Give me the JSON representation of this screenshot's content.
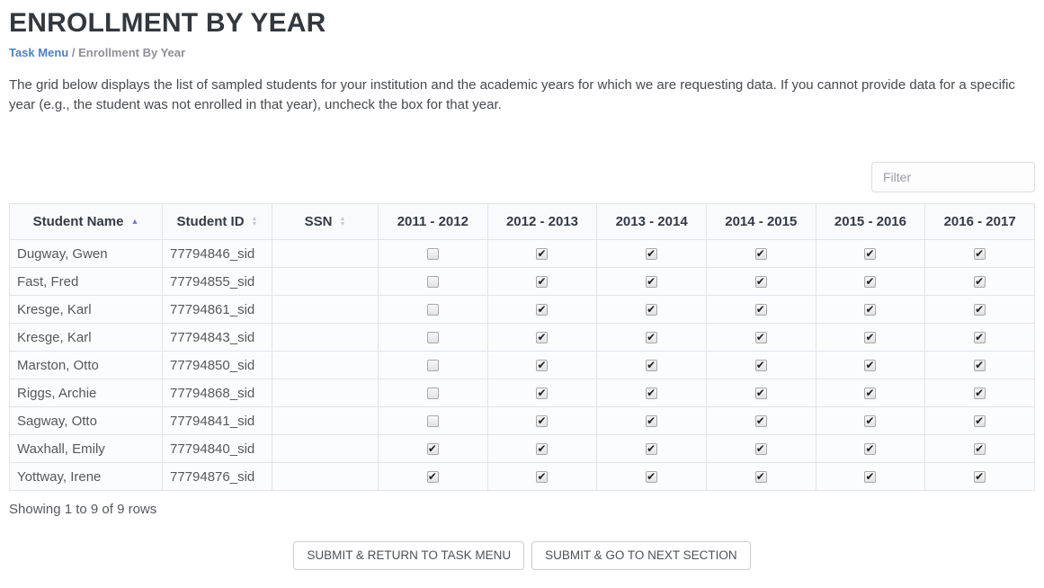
{
  "header": {
    "title": "ENROLLMENT BY YEAR",
    "breadcrumb": {
      "link": "Task Menu",
      "separator": "/",
      "current": "Enrollment By Year"
    },
    "description": "The grid below displays the list of sampled students for your institution and the academic years for which we are requesting data. If you cannot provide data for a specific year (e.g., the student was not enrolled in that year), uncheck the box for that year."
  },
  "filter": {
    "placeholder": "Filter",
    "value": ""
  },
  "table": {
    "columns": [
      {
        "label": "Student Name",
        "sortable": true,
        "sorted": "asc"
      },
      {
        "label": "Student ID",
        "sortable": true,
        "sorted": null
      },
      {
        "label": "SSN",
        "sortable": true,
        "sorted": null
      },
      {
        "label": "2011 - 2012",
        "sortable": false,
        "sorted": null
      },
      {
        "label": "2012 - 2013",
        "sortable": false,
        "sorted": null
      },
      {
        "label": "2013 - 2014",
        "sortable": false,
        "sorted": null
      },
      {
        "label": "2014 - 2015",
        "sortable": false,
        "sorted": null
      },
      {
        "label": "2015 - 2016",
        "sortable": false,
        "sorted": null
      },
      {
        "label": "2016 - 2017",
        "sortable": false,
        "sorted": null
      }
    ],
    "rows": [
      {
        "name": "Dugway, Gwen",
        "id": "77794846_sid",
        "ssn": "",
        "years": [
          false,
          true,
          true,
          true,
          true,
          true
        ]
      },
      {
        "name": "Fast, Fred",
        "id": "77794855_sid",
        "ssn": "",
        "years": [
          false,
          true,
          true,
          true,
          true,
          true
        ]
      },
      {
        "name": "Kresge, Karl",
        "id": "77794861_sid",
        "ssn": "",
        "years": [
          false,
          true,
          true,
          true,
          true,
          true
        ]
      },
      {
        "name": "Kresge, Karl",
        "id": "77794843_sid",
        "ssn": "",
        "years": [
          false,
          true,
          true,
          true,
          true,
          true
        ]
      },
      {
        "name": "Marston, Otto",
        "id": "77794850_sid",
        "ssn": "",
        "years": [
          false,
          true,
          true,
          true,
          true,
          true
        ]
      },
      {
        "name": "Riggs, Archie",
        "id": "77794868_sid",
        "ssn": "",
        "years": [
          false,
          true,
          true,
          true,
          true,
          true
        ]
      },
      {
        "name": "Sagway, Otto",
        "id": "77794841_sid",
        "ssn": "",
        "years": [
          false,
          true,
          true,
          true,
          true,
          true
        ]
      },
      {
        "name": "Waxhall, Emily",
        "id": "77794840_sid",
        "ssn": "",
        "years": [
          true,
          true,
          true,
          true,
          true,
          true
        ]
      },
      {
        "name": "Yottway, Irene",
        "id": "77794876_sid",
        "ssn": "",
        "years": [
          true,
          true,
          true,
          true,
          true,
          true
        ]
      }
    ],
    "summary": "Showing 1 to 9 of 9 rows"
  },
  "buttons": {
    "submit_return": "SUBMIT & RETURN TO TASK MENU",
    "submit_next": "SUBMIT & GO TO NEXT SECTION"
  },
  "icons": {
    "sort_ascending": "sort-asc-icon",
    "sort_unsorted": "sort-both-icon"
  },
  "colors": {
    "breadcrumb_link": "#4d80c4",
    "sort_active_arrow": "#767bd8",
    "sort_inactive_arrow": "#c7c7d2",
    "title_text": "#32383e",
    "header_bg": "#f9fafc",
    "row_bg": "#fbfcfd",
    "border": "#e3e3eb"
  }
}
